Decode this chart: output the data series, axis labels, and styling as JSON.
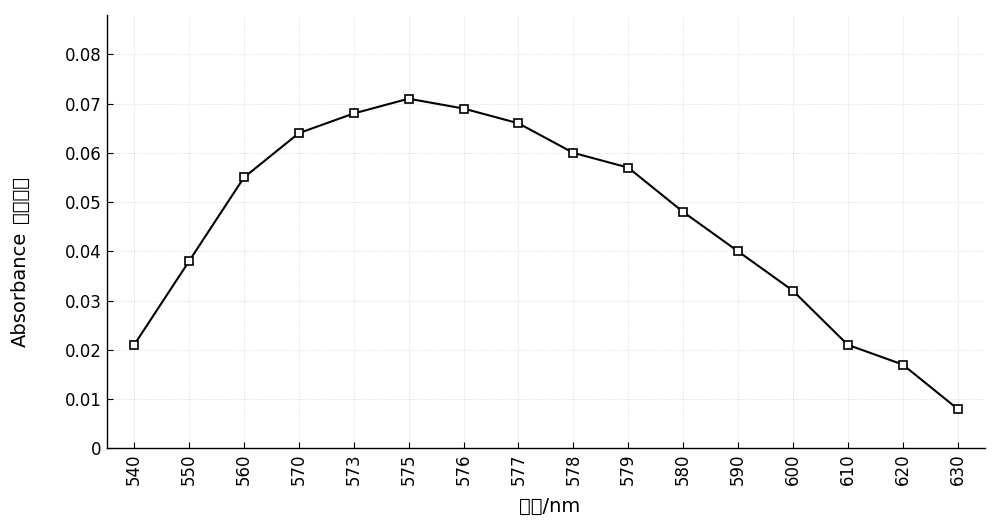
{
  "x_indices": [
    0,
    1,
    2,
    3,
    4,
    5,
    6,
    7,
    8,
    9,
    10,
    11,
    12,
    13,
    14,
    15
  ],
  "x_labels": [
    "540",
    "550",
    "560",
    "570",
    "573",
    "575",
    "576",
    "577",
    "578",
    "579",
    "580",
    "590",
    "600",
    "610",
    "620",
    "630"
  ],
  "y": [
    0.021,
    0.038,
    0.055,
    0.064,
    0.068,
    0.071,
    0.069,
    0.066,
    0.06,
    0.057,
    0.048,
    0.04,
    0.032,
    0.021,
    0.017,
    0.008
  ],
  "ylabel_chinese": "吸光度值",
  "ylabel_english": "Absorbance",
  "xlabel": "波长/nm",
  "ylim": [
    0,
    0.088
  ],
  "yticks": [
    0,
    0.01,
    0.02,
    0.03,
    0.04,
    0.05,
    0.06,
    0.07,
    0.08
  ],
  "ytick_labels": [
    "0",
    "0.01",
    "0.02",
    "0.03",
    "0.04",
    "0.05",
    "0.06",
    "0.07",
    "0.08"
  ],
  "line_color": "#000000",
  "marker": "s",
  "marker_size": 6,
  "marker_facecolor": "#ffffff",
  "marker_edgecolor": "#000000",
  "background_color": "#ffffff",
  "fig_background": "#ffffff",
  "line_width": 1.5,
  "label_fontsize": 14,
  "tick_fontsize": 12,
  "grid_color": "#cccccc",
  "grid_dot_color": "#aaaaaa"
}
